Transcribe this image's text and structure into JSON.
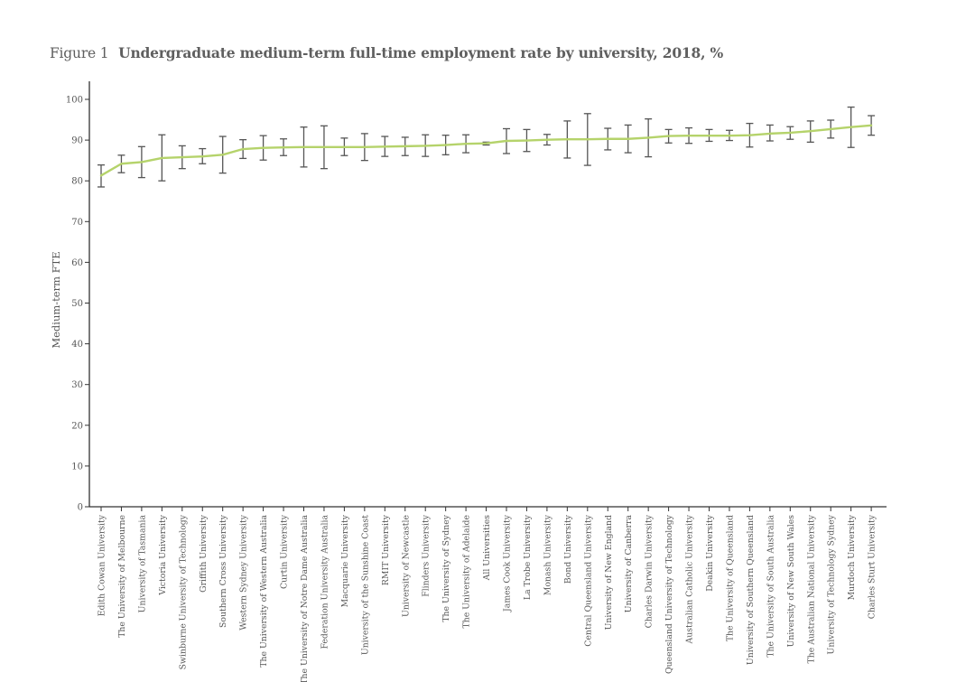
{
  "figure": {
    "label": "Figure 1",
    "title": "Undergraduate medium-term full-time employment rate by university, 2018, %"
  },
  "colors": {
    "line": "#b5d36b",
    "error_bar": "#555555",
    "axis": "#333333",
    "text": "#555555"
  },
  "chart_data": {
    "type": "line",
    "title": "Undergraduate medium-term full-time employment rate by university, 2018, %",
    "xlabel": "",
    "ylabel": "Medium-term FTE",
    "ylim": [
      0,
      100
    ],
    "yticks": [
      0,
      10,
      20,
      30,
      40,
      50,
      60,
      70,
      80,
      90,
      100
    ],
    "grid": false,
    "categories": [
      "Edith Cowan University",
      "The University of Melbourne",
      "University of Tasmania",
      "Victoria University",
      "Swinburne University of Technology",
      "Griffith University",
      "Southern Cross University",
      "Western Sydney University",
      "The University of Western Australia",
      "Curtin University",
      "The University of Notre Dame Australia",
      "Federation University Australia",
      "Macquarie University",
      "University of the Sunshine Coast",
      "RMIT University",
      "University of Newcastle",
      "Flinders University",
      "The University of Sydney",
      "The University of Adelaide",
      "All Universities",
      "James Cook University",
      "La Trobe University",
      "Monash University",
      "Bond University",
      "Central Queensland University",
      "University of New England",
      "University of Canberra",
      "Charles Darwin University",
      "Queensland University of Technology",
      "Australian Catholic University",
      "Deakin University",
      "The University of Queensland",
      "University of Southern Queensland",
      "The University of South Australia",
      "University of New South Wales",
      "The Australian National University",
      "University of Technology Sydney",
      "Murdoch University",
      "Charles Sturt University"
    ],
    "series": [
      {
        "values": [
          81.3,
          84.2,
          84.6,
          85.6,
          85.8,
          86.0,
          86.4,
          87.8,
          88.1,
          88.2,
          88.3,
          88.3,
          88.3,
          88.3,
          88.4,
          88.5,
          88.6,
          88.8,
          89.1,
          89.2,
          89.8,
          89.9,
          90.1,
          90.2,
          90.2,
          90.3,
          90.3,
          90.6,
          91.0,
          91.1,
          91.1,
          91.1,
          91.2,
          91.6,
          91.8,
          92.2,
          92.7,
          93.2,
          93.6
        ],
        "lower": [
          78.5,
          82.0,
          80.8,
          80.0,
          83.0,
          84.2,
          81.9,
          85.5,
          85.1,
          86.2,
          83.4,
          83.0,
          86.2,
          85.0,
          86.0,
          86.2,
          86.0,
          86.4,
          86.9,
          88.8,
          86.7,
          87.2,
          88.8,
          85.6,
          83.8,
          87.6,
          86.9,
          85.9,
          89.3,
          89.2,
          89.7,
          89.9,
          88.3,
          89.8,
          90.2,
          89.5,
          90.5,
          88.2,
          91.2
        ],
        "upper": [
          83.9,
          86.3,
          88.4,
          91.3,
          88.6,
          87.9,
          90.9,
          90.1,
          91.1,
          90.3,
          93.2,
          93.5,
          90.5,
          91.6,
          90.9,
          90.7,
          91.3,
          91.2,
          91.3,
          89.5,
          92.8,
          92.6,
          91.4,
          94.7,
          96.5,
          92.9,
          93.7,
          95.2,
          92.6,
          93.0,
          92.6,
          92.4,
          94.1,
          93.7,
          93.3,
          94.7,
          94.9,
          98.1,
          96.0
        ]
      }
    ]
  }
}
